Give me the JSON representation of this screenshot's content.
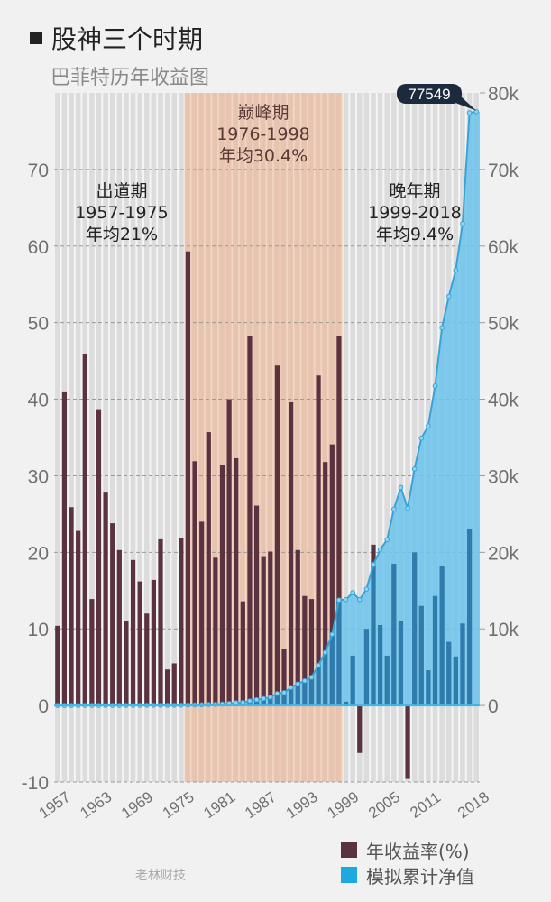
{
  "title": "股神三个时期",
  "subtitle": "巴菲特历年收益图",
  "watermark": "老林财技",
  "colors": {
    "bar_return": "#5b3340",
    "bar_return_in_area": "#2f7bab",
    "cumulative_area": "#6cc4ec",
    "cumulative_line": "#3aa3d6",
    "peak_band": "#e9c0a8",
    "stripe_bg": "#dcdcdc",
    "callout_bg": "#1c2a3e"
  },
  "chart_data": {
    "type": "bar+area",
    "title": "巴菲特历年收益图",
    "x": [
      1957,
      1958,
      1959,
      1960,
      1961,
      1962,
      1963,
      1964,
      1965,
      1966,
      1967,
      1968,
      1969,
      1970,
      1971,
      1972,
      1973,
      1974,
      1975,
      1976,
      1977,
      1978,
      1979,
      1980,
      1981,
      1982,
      1983,
      1984,
      1985,
      1986,
      1987,
      1988,
      1989,
      1990,
      1991,
      1992,
      1993,
      1994,
      1995,
      1996,
      1997,
      1998,
      1999,
      2000,
      2001,
      2002,
      2003,
      2004,
      2005,
      2006,
      2007,
      2008,
      2009,
      2010,
      2011,
      2012,
      2013,
      2014,
      2015,
      2016,
      2017,
      2018
    ],
    "x_tick_labels": [
      "1957",
      "1963",
      "1969",
      "1975",
      "1981",
      "1987",
      "1993",
      "1999",
      "2005",
      "2011",
      "2018"
    ],
    "series": [
      {
        "name": "年收益率(%)",
        "axis": "left",
        "kind": "bar",
        "values": [
          10.4,
          40.9,
          25.9,
          22.8,
          45.9,
          13.9,
          38.7,
          27.8,
          23.8,
          20.3,
          11.0,
          19.0,
          16.2,
          12.0,
          16.4,
          21.7,
          4.7,
          5.5,
          21.9,
          59.3,
          31.9,
          24.0,
          35.7,
          19.3,
          31.4,
          40.0,
          32.3,
          13.6,
          48.2,
          26.1,
          19.5,
          20.1,
          44.4,
          7.4,
          39.6,
          20.3,
          14.3,
          13.9,
          43.1,
          31.8,
          34.1,
          48.3,
          0.5,
          6.5,
          -6.2,
          10.0,
          21.0,
          10.5,
          6.5,
          18.5,
          11.0,
          -9.6,
          20.0,
          13.0,
          4.6,
          14.3,
          18.2,
          8.3,
          6.4,
          10.7,
          23.0,
          0.2
        ]
      },
      {
        "name": "模拟累计净值",
        "axis": "right",
        "kind": "area",
        "values": [
          1.1,
          1.6,
          2.0,
          2.4,
          3.5,
          4.0,
          5.5,
          7.1,
          8.8,
          10.6,
          11.7,
          13.9,
          16.2,
          18.1,
          21.1,
          25.7,
          26.9,
          28.4,
          34.6,
          55.1,
          72.7,
          90.2,
          122.4,
          146.0,
          191.8,
          268.5,
          355.3,
          403.6,
          598.1,
          754.3,
          901.3,
          1082.5,
          1563.2,
          1678.9,
          2343.8,
          2819.6,
          3222.8,
          3670.8,
          5253.0,
          6923.5,
          9284.4,
          13768.8,
          13837,
          14736,
          13822,
          15204,
          18397,
          20329,
          21650,
          25656,
          28478,
          25744,
          30893,
          34909,
          36515,
          41737,
          49333,
          53428,
          56847,
          62930,
          77404,
          77549
        ]
      }
    ],
    "left_axis": {
      "ylim": [
        -10,
        80
      ],
      "ticks": [
        "-10",
        "0",
        "10",
        "20",
        "30",
        "40",
        "50",
        "60",
        "70"
      ]
    },
    "right_axis": {
      "ylim": [
        -10000,
        80000
      ],
      "ticks": [
        "0",
        "10k",
        "20k",
        "30k",
        "40k",
        "50k",
        "60k",
        "70k",
        "80k"
      ]
    },
    "callout": "77549",
    "periods": [
      {
        "name": "出道期",
        "range": "1957-1975",
        "avg": "年均21%",
        "start": 1957,
        "end": 1975,
        "highlight": false
      },
      {
        "name": "巅峰期",
        "range": "1976-1998",
        "avg": "年均30.4%",
        "start": 1976,
        "end": 1998,
        "highlight": true
      },
      {
        "name": "晚年期",
        "range": "1999-2018",
        "avg": "年均9.4%",
        "start": 1999,
        "end": 2018,
        "highlight": false
      }
    ],
    "grid": true,
    "legend_position": "bottom-right"
  },
  "legend": [
    {
      "label": "年收益率(%)",
      "color": "#5b3340"
    },
    {
      "label": "模拟累计净值",
      "color": "#1ea8e0"
    }
  ]
}
